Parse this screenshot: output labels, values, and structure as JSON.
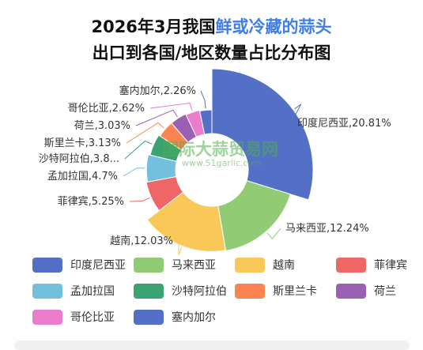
{
  "title": {
    "line1_prefix": "2026年3月我国",
    "line1_highlight": "鲜或冷藏的蒜头",
    "line2": "出口到各国/地区数量占比分布图"
  },
  "watermark": {
    "cn": "国际大蒜贸易网",
    "url": "www.51garlic.com"
  },
  "colors": {
    "title_highlight": "#3f7ee8",
    "background": "#ffffff",
    "watermark": "#4fb04c"
  },
  "chart_data": {
    "type": "pie",
    "title": "2026年3月我国鲜或冷藏的蒜头出口到各国/地区数量占比分布图",
    "unit": "%",
    "legend_position": "bottom",
    "slices": [
      {
        "name": "印度尼西亚",
        "value": 20.81,
        "label": "印度尼西亚,20.81%",
        "color": "#5470c6"
      },
      {
        "name": "马来西亚",
        "value": 12.24,
        "label": "马来西亚,12.24%",
        "color": "#91cc75"
      },
      {
        "name": "越南",
        "value": 12.03,
        "label": "越南,12.03%",
        "color": "#fac858"
      },
      {
        "name": "菲律宾",
        "value": 5.25,
        "label": "菲律宾,5.25%",
        "color": "#ee6666"
      },
      {
        "name": "孟加拉国",
        "value": 4.7,
        "label": "孟加拉国,4.7%",
        "color": "#73c0de"
      },
      {
        "name": "沙特阿拉伯",
        "value": 3.8,
        "label": "沙特阿拉伯,3.8...",
        "color": "#3ba272"
      },
      {
        "name": "斯里兰卡",
        "value": 3.13,
        "label": "斯里兰卡,3.13%",
        "color": "#fc8452"
      },
      {
        "name": "荷兰",
        "value": 3.03,
        "label": "荷兰,3.03%",
        "color": "#9a60b4"
      },
      {
        "name": "哥伦比亚",
        "value": 2.62,
        "label": "哥伦比亚,2.62%",
        "color": "#ea7ccc"
      },
      {
        "name": "塞内加尔",
        "value": 2.26,
        "label": "塞内加尔,2.26%",
        "color": "#5470c6"
      }
    ]
  }
}
